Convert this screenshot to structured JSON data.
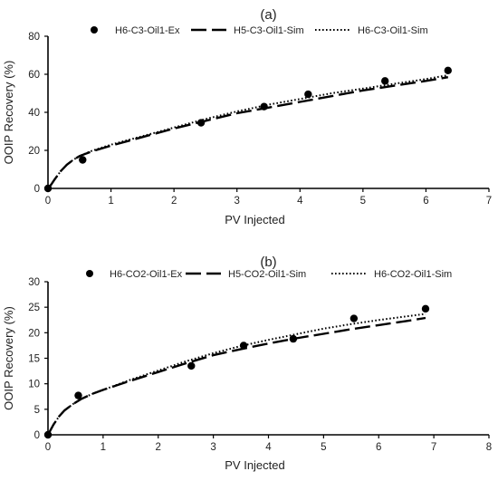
{
  "chart_data": [
    {
      "type": "line",
      "title": "(a)",
      "xlabel": "PV Injected",
      "ylabel": "OOIP Recovery (%)",
      "xlim": [
        0,
        7
      ],
      "ylim": [
        0,
        80
      ],
      "xticks": [
        0,
        1,
        2,
        3,
        4,
        5,
        6,
        7
      ],
      "yticks": [
        0,
        20,
        40,
        60,
        80
      ],
      "grid": false,
      "legend_position": "top",
      "series": [
        {
          "name": "H6-C3-Oil1-Ex",
          "style": "marker",
          "x": [
            0,
            0.55,
            2.43,
            3.43,
            4.13,
            5.35,
            6.35
          ],
          "y": [
            0,
            15,
            34.5,
            43,
            49.5,
            56.5,
            62
          ]
        },
        {
          "name": "H5-C3-Oil1-Sim",
          "style": "long-dash",
          "x": [
            0,
            0.05,
            0.1,
            0.2,
            0.3,
            0.4,
            0.5,
            0.7,
            1.0,
            1.5,
            2.0,
            2.5,
            3.0,
            3.5,
            4.0,
            4.5,
            5.0,
            5.5,
            6.0,
            6.35
          ],
          "y": [
            0,
            2,
            4.5,
            9,
            12.5,
            15,
            17,
            19.5,
            22.5,
            27,
            31.5,
            35.5,
            39.5,
            42.5,
            45.5,
            48.5,
            51.5,
            54,
            56.5,
            58.5
          ]
        },
        {
          "name": "H6-C3-Oil1-Sim",
          "style": "dotted",
          "x": [
            0,
            0.05,
            0.1,
            0.2,
            0.3,
            0.4,
            0.5,
            0.7,
            1.0,
            1.5,
            2.0,
            2.5,
            3.0,
            3.5,
            4.0,
            4.5,
            5.0,
            5.5,
            6.0,
            6.35
          ],
          "y": [
            0,
            2,
            4.5,
            9,
            12.5,
            15,
            17,
            19.8,
            23,
            27.5,
            32,
            36.5,
            40.5,
            44,
            47,
            50,
            52.5,
            55,
            57.5,
            59.5
          ]
        }
      ]
    },
    {
      "type": "line",
      "title": "(b)",
      "xlabel": "PV Injected",
      "ylabel": "OOIP Recovery (%)",
      "xlim": [
        0,
        8
      ],
      "ylim": [
        0,
        30
      ],
      "xticks": [
        0,
        1,
        2,
        3,
        4,
        5,
        6,
        7,
        8
      ],
      "yticks": [
        0,
        5,
        10,
        15,
        20,
        25,
        30
      ],
      "grid": false,
      "legend_position": "top",
      "series": [
        {
          "name": "H6-CO2-Oil1-Ex",
          "style": "marker",
          "x": [
            0,
            0.55,
            2.6,
            3.55,
            4.45,
            5.55,
            6.85
          ],
          "y": [
            0,
            7.7,
            13.5,
            17.5,
            18.8,
            22.8,
            24.7
          ]
        },
        {
          "name": "H5-CO2-Oil1-Sim",
          "style": "long-dash",
          "x": [
            0,
            0.05,
            0.1,
            0.2,
            0.3,
            0.45,
            0.6,
            0.8,
            1.0,
            1.5,
            2.0,
            2.5,
            3.0,
            3.5,
            4.0,
            4.5,
            5.0,
            5.5,
            6.0,
            6.5,
            6.85
          ],
          "y": [
            0,
            1,
            2,
            3.6,
            4.8,
            6,
            7,
            8,
            8.8,
            10.6,
            12.3,
            14,
            15.6,
            16.8,
            17.9,
            18.9,
            19.8,
            20.7,
            21.5,
            22.3,
            22.9
          ]
        },
        {
          "name": "H6-CO2-Oil1-Sim",
          "style": "dotted",
          "x": [
            0,
            0.05,
            0.1,
            0.2,
            0.3,
            0.45,
            0.6,
            0.8,
            1.0,
            1.5,
            2.0,
            2.5,
            3.0,
            3.5,
            4.0,
            4.5,
            5.0,
            5.5,
            6.0,
            6.5,
            6.85
          ],
          "y": [
            0,
            1,
            2,
            3.6,
            4.8,
            6,
            7,
            8,
            8.8,
            10.8,
            12.6,
            14.4,
            16,
            17.4,
            18.6,
            19.7,
            20.8,
            21.7,
            22.5,
            23.2,
            23.7
          ]
        }
      ]
    }
  ]
}
